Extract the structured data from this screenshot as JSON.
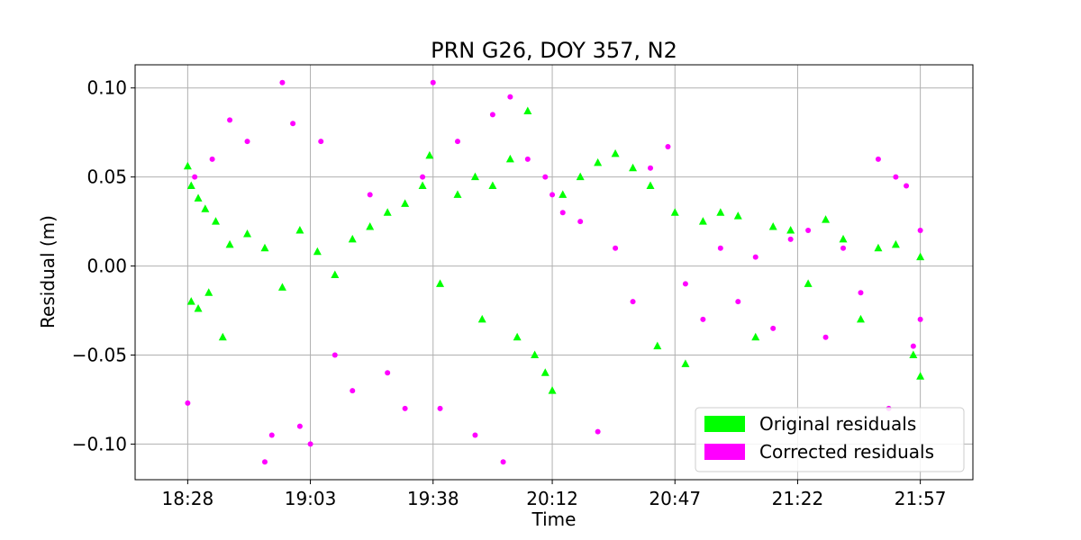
{
  "chart_data": {
    "type": "scatter",
    "title": "PRN G26, DOY 357, N2",
    "xlabel": "Time",
    "ylabel": "Residual (m)",
    "x_unit": "HH:MM",
    "xlim": [
      "18:13",
      "22:12"
    ],
    "ylim": [
      -0.12,
      0.113
    ],
    "xticks": [
      "18:28",
      "19:03",
      "19:38",
      "20:12",
      "20:47",
      "21:22",
      "21:57"
    ],
    "yticks": [
      0.1,
      0.05,
      0.0,
      -0.05,
      -0.1
    ],
    "ytick_labels": [
      "0.10",
      "0.05",
      "0.00",
      "−0.05",
      "−0.10"
    ],
    "grid": true,
    "legend_position": "lower-right",
    "series": [
      {
        "name": "Original residuals",
        "marker": "triangle",
        "color": "#00ff00",
        "points": [
          [
            "18:28",
            0.056
          ],
          [
            "18:29",
            0.045
          ],
          [
            "18:31",
            0.038
          ],
          [
            "18:33",
            0.032
          ],
          [
            "18:36",
            0.025
          ],
          [
            "18:29",
            -0.02
          ],
          [
            "18:31",
            -0.024
          ],
          [
            "18:34",
            -0.015
          ],
          [
            "18:38",
            -0.04
          ],
          [
            "18:40",
            0.012
          ],
          [
            "18:45",
            0.018
          ],
          [
            "18:50",
            0.01
          ],
          [
            "18:55",
            -0.012
          ],
          [
            "19:00",
            0.02
          ],
          [
            "19:05",
            0.008
          ],
          [
            "19:10",
            -0.005
          ],
          [
            "19:15",
            0.015
          ],
          [
            "19:20",
            0.022
          ],
          [
            "19:25",
            0.03
          ],
          [
            "19:30",
            0.035
          ],
          [
            "19:35",
            0.045
          ],
          [
            "19:37",
            0.062
          ],
          [
            "19:40",
            -0.01
          ],
          [
            "19:45",
            0.04
          ],
          [
            "19:50",
            0.05
          ],
          [
            "19:52",
            -0.03
          ],
          [
            "19:55",
            0.045
          ],
          [
            "20:00",
            0.06
          ],
          [
            "20:02",
            -0.04
          ],
          [
            "20:05",
            0.087
          ],
          [
            "20:07",
            -0.05
          ],
          [
            "20:10",
            -0.06
          ],
          [
            "20:12",
            -0.07
          ],
          [
            "20:15",
            0.04
          ],
          [
            "20:20",
            0.05
          ],
          [
            "20:25",
            0.058
          ],
          [
            "20:30",
            0.063
          ],
          [
            "20:35",
            0.055
          ],
          [
            "20:40",
            0.045
          ],
          [
            "20:42",
            -0.045
          ],
          [
            "20:47",
            0.03
          ],
          [
            "20:50",
            -0.055
          ],
          [
            "20:55",
            0.025
          ],
          [
            "21:00",
            0.03
          ],
          [
            "21:05",
            0.028
          ],
          [
            "21:10",
            -0.04
          ],
          [
            "21:15",
            0.022
          ],
          [
            "21:20",
            0.02
          ],
          [
            "21:25",
            -0.01
          ],
          [
            "21:30",
            0.026
          ],
          [
            "21:35",
            0.015
          ],
          [
            "21:40",
            -0.03
          ],
          [
            "21:45",
            0.01
          ],
          [
            "21:50",
            0.012
          ],
          [
            "21:55",
            -0.05
          ],
          [
            "21:57",
            -0.062
          ],
          [
            "21:57",
            0.005
          ]
        ]
      },
      {
        "name": "Corrected residuals",
        "marker": "circle",
        "color": "#ff00ff",
        "points": [
          [
            "18:28",
            -0.077
          ],
          [
            "18:30",
            0.05
          ],
          [
            "18:35",
            0.06
          ],
          [
            "18:40",
            0.082
          ],
          [
            "18:45",
            0.07
          ],
          [
            "18:50",
            -0.11
          ],
          [
            "18:52",
            -0.095
          ],
          [
            "18:55",
            0.103
          ],
          [
            "18:58",
            0.08
          ],
          [
            "19:00",
            -0.09
          ],
          [
            "19:03",
            -0.1
          ],
          [
            "19:06",
            0.07
          ],
          [
            "19:10",
            -0.05
          ],
          [
            "19:15",
            -0.07
          ],
          [
            "19:20",
            0.04
          ],
          [
            "19:25",
            -0.06
          ],
          [
            "19:30",
            -0.08
          ],
          [
            "19:35",
            0.05
          ],
          [
            "19:38",
            0.103
          ],
          [
            "19:40",
            -0.08
          ],
          [
            "19:45",
            0.07
          ],
          [
            "19:50",
            -0.095
          ],
          [
            "19:55",
            0.085
          ],
          [
            "19:58",
            -0.11
          ],
          [
            "20:00",
            0.095
          ],
          [
            "20:05",
            0.06
          ],
          [
            "20:10",
            0.05
          ],
          [
            "20:12",
            0.04
          ],
          [
            "20:15",
            0.03
          ],
          [
            "20:20",
            0.025
          ],
          [
            "20:25",
            -0.093
          ],
          [
            "20:30",
            0.01
          ],
          [
            "20:35",
            -0.02
          ],
          [
            "20:40",
            0.055
          ],
          [
            "20:45",
            0.067
          ],
          [
            "20:50",
            -0.01
          ],
          [
            "20:55",
            -0.03
          ],
          [
            "21:00",
            0.01
          ],
          [
            "21:05",
            -0.02
          ],
          [
            "21:10",
            0.005
          ],
          [
            "21:15",
            -0.035
          ],
          [
            "21:20",
            0.015
          ],
          [
            "21:25",
            0.02
          ],
          [
            "21:30",
            -0.04
          ],
          [
            "21:35",
            0.01
          ],
          [
            "21:40",
            -0.015
          ],
          [
            "21:45",
            0.06
          ],
          [
            "21:48",
            -0.08
          ],
          [
            "21:50",
            0.05
          ],
          [
            "21:53",
            0.045
          ],
          [
            "21:55",
            -0.045
          ],
          [
            "21:57",
            0.02
          ],
          [
            "21:57",
            -0.03
          ]
        ]
      }
    ]
  }
}
